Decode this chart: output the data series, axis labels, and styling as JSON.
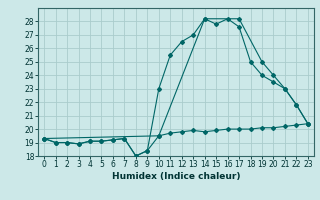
{
  "title": "",
  "xlabel": "Humidex (Indice chaleur)",
  "bg_color": "#cce8e8",
  "grid_color": "#aacccc",
  "line_color": "#006666",
  "spine_color": "#336666",
  "text_color": "#003333",
  "xlim": [
    -0.5,
    23.5
  ],
  "ylim": [
    18,
    29
  ],
  "yticks": [
    18,
    19,
    20,
    21,
    22,
    23,
    24,
    25,
    26,
    27,
    28
  ],
  "xticks": [
    0,
    1,
    2,
    3,
    4,
    5,
    6,
    7,
    8,
    9,
    10,
    11,
    12,
    13,
    14,
    15,
    16,
    17,
    18,
    19,
    20,
    21,
    22,
    23
  ],
  "series": [
    {
      "x": [
        0,
        1,
        2,
        3,
        4,
        5,
        6,
        7,
        8,
        9,
        10,
        11,
        12,
        13,
        14,
        15,
        16,
        17,
        18,
        19,
        20,
        21,
        22,
        23
      ],
      "y": [
        19.3,
        19.0,
        19.0,
        18.9,
        19.1,
        19.1,
        19.2,
        19.3,
        18.0,
        18.4,
        19.5,
        19.7,
        19.8,
        19.9,
        19.8,
        19.9,
        20.0,
        20.0,
        20.0,
        20.1,
        20.1,
        20.2,
        20.3,
        20.4
      ]
    },
    {
      "x": [
        0,
        1,
        2,
        3,
        4,
        5,
        6,
        7,
        8,
        9,
        10,
        11,
        12,
        13,
        14,
        15,
        16,
        17,
        18,
        19,
        20,
        21,
        22,
        23
      ],
      "y": [
        19.3,
        19.0,
        19.0,
        18.9,
        19.1,
        19.1,
        19.2,
        19.3,
        18.0,
        18.4,
        23.0,
        25.5,
        26.5,
        27.0,
        28.2,
        27.8,
        28.2,
        27.6,
        25.0,
        24.0,
        23.5,
        23.0,
        21.8,
        20.4
      ]
    },
    {
      "x": [
        0,
        10,
        14,
        17,
        19,
        20,
        21,
        22,
        23
      ],
      "y": [
        19.3,
        19.5,
        28.2,
        28.2,
        25.0,
        24.0,
        23.0,
        21.8,
        20.4
      ]
    }
  ]
}
